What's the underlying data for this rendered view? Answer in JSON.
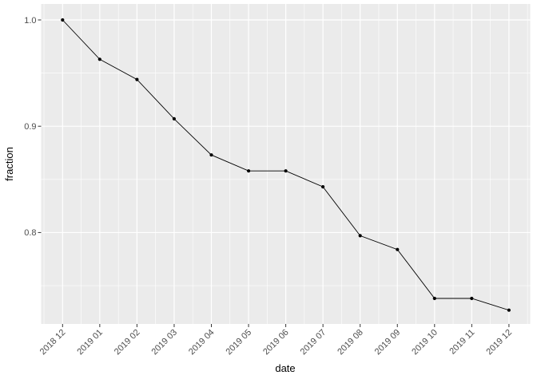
{
  "chart_data": {
    "type": "line",
    "title": "",
    "xlabel": "date",
    "ylabel": "fraction",
    "categories": [
      "2018 12",
      "2019 01",
      "2019 02",
      "2019 03",
      "2019 04",
      "2019 05",
      "2019 06",
      "2019 07",
      "2019 08",
      "2019 09",
      "2019 10",
      "2019 11",
      "2019 12"
    ],
    "values": [
      1.0,
      0.963,
      0.944,
      0.907,
      0.873,
      0.858,
      0.858,
      0.843,
      0.797,
      0.784,
      0.738,
      0.738,
      0.727
    ],
    "yticks": [
      1.0,
      0.9,
      0.8
    ],
    "ytick_labels": [
      "1.0",
      "0.9",
      "0.8"
    ],
    "yminor_ticks": [
      0.95,
      0.85,
      0.75
    ],
    "ylim": [
      0.714,
      1.015
    ],
    "grid": "on",
    "legend": "none",
    "marker": "point",
    "colors": {
      "panel_background": "#EBEBEB",
      "grid": "#FFFFFF",
      "line": "#000000",
      "point": "#000000",
      "tick_label": "#4D4D4D",
      "axis_title": "#1A1A1A",
      "tick_mark": "#333333"
    }
  }
}
